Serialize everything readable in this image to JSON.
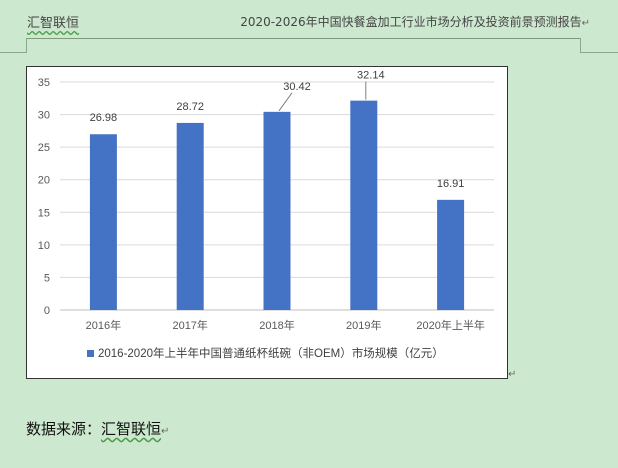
{
  "header": {
    "brand": "汇智联恒",
    "doc_title": "2020-2026年中国快餐盒加工行业市场分析及投资前景预测报告",
    "para_mark": "↵"
  },
  "chart_data": {
    "type": "bar",
    "categories": [
      "2016年",
      "2017年",
      "2018年",
      "2019年",
      "2020年上半年"
    ],
    "series": [
      {
        "name": "2016-2020年上半年中国普通纸杯纸碗（非OEM）市场规模（亿元）",
        "values": [
          26.98,
          28.72,
          30.42,
          32.14,
          16.91
        ],
        "color": "#4472c4"
      }
    ],
    "data_labels": [
      "26.98",
      "28.72",
      "30.42",
      "32.14",
      "16.91"
    ],
    "ylim": [
      0,
      35
    ],
    "yticks": [
      0,
      5,
      10,
      15,
      20,
      25,
      30,
      35
    ],
    "grid": true,
    "legend": "bottom",
    "title": "",
    "xlabel": "",
    "ylabel": ""
  },
  "footer": {
    "source_label": "数据来源：",
    "source_name": "汇智联恒",
    "para_mark": "↵"
  }
}
